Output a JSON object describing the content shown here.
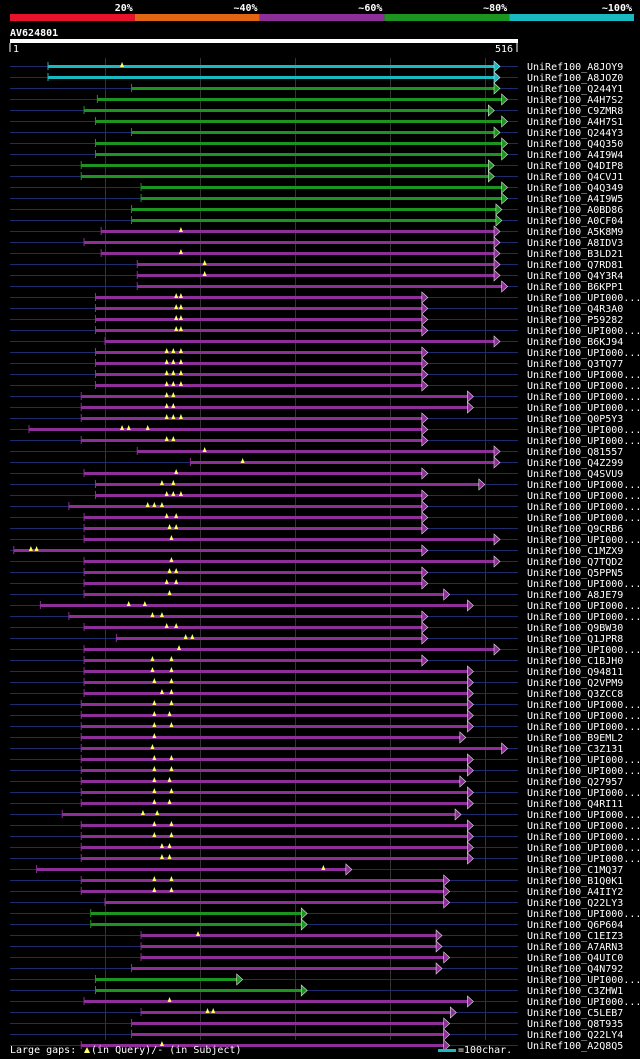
{
  "colors": {
    "band_20": "#e8132b",
    "band_40": "#e26514",
    "band_60": "#8e2e98",
    "band_80": "#1c9520",
    "band_100": "#19b9c1",
    "line_under": "#1e2c6c",
    "triangle_marker": "#ffff66"
  },
  "legend_top": [
    {
      "label": "20%",
      "color": "#e8132b"
    },
    {
      "label": "~40%",
      "color": "#e26514"
    },
    {
      "label": "~60%",
      "color": "#8e2e98"
    },
    {
      "label": "~80%",
      "color": "#1c9520"
    },
    {
      "label": "~100%",
      "color": "#19b9c1"
    }
  ],
  "query": {
    "name": "AV624801",
    "start": "1",
    "end": "516",
    "length": 516
  },
  "footer": {
    "gaps_label_pre": "Large gaps: ",
    "gaps_label_query": "(in Query)/- (in Subject)",
    "scale_label": "=100char."
  },
  "hits": [
    {
      "id": "UniRef100_A8JOY9",
      "band": 5,
      "s": 40,
      "e": 516,
      "gaps": [
        118
      ]
    },
    {
      "id": "UniRef100_A8JOZ0",
      "band": 5,
      "s": 40,
      "e": 516,
      "gaps": []
    },
    {
      "id": "UniRef100_Q244Y1",
      "band": 4,
      "s": 128,
      "e": 516,
      "gaps": []
    },
    {
      "id": "UniRef100_A4H7S2",
      "band": 4,
      "s": 92,
      "e": 524,
      "gaps": []
    },
    {
      "id": "UniRef100_C9ZMR8",
      "band": 4,
      "s": 78,
      "e": 510,
      "gaps": []
    },
    {
      "id": "UniRef100_A4H7S1",
      "band": 4,
      "s": 90,
      "e": 524,
      "gaps": []
    },
    {
      "id": "UniRef100_Q244Y3",
      "band": 4,
      "s": 128,
      "e": 516,
      "gaps": []
    },
    {
      "id": "UniRef100_Q4Q350",
      "band": 4,
      "s": 90,
      "e": 524,
      "gaps": []
    },
    {
      "id": "UniRef100_A4I9W4",
      "band": 4,
      "s": 90,
      "e": 524,
      "gaps": []
    },
    {
      "id": "UniRef100_Q4DIP8",
      "band": 4,
      "s": 75,
      "e": 510,
      "gaps": []
    },
    {
      "id": "UniRef100_Q4CVJ1",
      "band": 4,
      "s": 75,
      "e": 510,
      "gaps": []
    },
    {
      "id": "UniRef100_Q4Q349",
      "band": 4,
      "s": 138,
      "e": 524,
      "gaps": []
    },
    {
      "id": "UniRef100_A4I9W5",
      "band": 4,
      "s": 138,
      "e": 524,
      "gaps": []
    },
    {
      "id": "UniRef100_A0BD86",
      "band": 4,
      "s": 128,
      "e": 518,
      "gaps": []
    },
    {
      "id": "UniRef100_A0CF04",
      "band": 4,
      "s": 128,
      "e": 518,
      "gaps": []
    },
    {
      "id": "UniRef100_A5K8M9",
      "band": 3,
      "s": 96,
      "e": 516,
      "gaps": [
        180
      ]
    },
    {
      "id": "UniRef100_A8IDV3",
      "band": 3,
      "s": 78,
      "e": 516,
      "gaps": []
    },
    {
      "id": "UniRef100_B3LD21",
      "band": 3,
      "s": 96,
      "e": 516,
      "gaps": [
        180
      ]
    },
    {
      "id": "UniRef100_Q7RD81",
      "band": 3,
      "s": 134,
      "e": 516,
      "gaps": [
        205
      ]
    },
    {
      "id": "UniRef100_Q4Y3R4",
      "band": 3,
      "s": 134,
      "e": 516,
      "gaps": [
        205
      ]
    },
    {
      "id": "UniRef100_B6KPP1",
      "band": 3,
      "s": 134,
      "e": 524,
      "gaps": []
    },
    {
      "id": "UniRef100_UPI000...",
      "band": 3,
      "s": 90,
      "e": 440,
      "gaps": [
        175,
        180
      ]
    },
    {
      "id": "UniRef100_Q4R3A0",
      "band": 3,
      "s": 90,
      "e": 440,
      "gaps": [
        175,
        180
      ]
    },
    {
      "id": "UniRef100_P59282",
      "band": 3,
      "s": 90,
      "e": 440,
      "gaps": [
        175,
        180
      ]
    },
    {
      "id": "UniRef100_UPI000...",
      "band": 3,
      "s": 90,
      "e": 440,
      "gaps": [
        175,
        180
      ]
    },
    {
      "id": "UniRef100_B6KJ94",
      "band": 3,
      "s": 100,
      "e": 516,
      "gaps": []
    },
    {
      "id": "UniRef100_UPI000...",
      "band": 3,
      "s": 90,
      "e": 440,
      "gaps": [
        165,
        172,
        180
      ]
    },
    {
      "id": "UniRef100_Q3TQ77",
      "band": 3,
      "s": 90,
      "e": 440,
      "gaps": [
        165,
        172,
        180
      ]
    },
    {
      "id": "UniRef100_UPI000...",
      "band": 3,
      "s": 90,
      "e": 440,
      "gaps": [
        165,
        172,
        180
      ]
    },
    {
      "id": "UniRef100_UPI000...",
      "band": 3,
      "s": 90,
      "e": 440,
      "gaps": [
        165,
        172,
        180
      ]
    },
    {
      "id": "UniRef100_UPI000...",
      "band": 3,
      "s": 75,
      "e": 488,
      "gaps": [
        165,
        172
      ]
    },
    {
      "id": "UniRef100_UPI000...",
      "band": 3,
      "s": 75,
      "e": 488,
      "gaps": [
        165,
        172
      ]
    },
    {
      "id": "UniRef100_Q0P5Y3",
      "band": 3,
      "s": 75,
      "e": 440,
      "gaps": [
        165,
        172,
        180
      ]
    },
    {
      "id": "UniRef100_UPI000...",
      "band": 3,
      "s": 20,
      "e": 440,
      "gaps": [
        118,
        125,
        145
      ]
    },
    {
      "id": "UniRef100_UPI000...",
      "band": 3,
      "s": 75,
      "e": 440,
      "gaps": [
        165,
        172
      ]
    },
    {
      "id": "UniRef100_Q81557",
      "band": 3,
      "s": 134,
      "e": 516,
      "gaps": [
        205
      ]
    },
    {
      "id": "UniRef100_Q4Z299",
      "band": 3,
      "s": 190,
      "e": 516,
      "gaps": [
        245
      ]
    },
    {
      "id": "UniRef100_Q4SVU9",
      "band": 3,
      "s": 78,
      "e": 440,
      "gaps": [
        175
      ]
    },
    {
      "id": "UniRef100_UPI000...",
      "band": 3,
      "s": 90,
      "e": 500,
      "gaps": [
        160,
        172
      ]
    },
    {
      "id": "UniRef100_UPI000...",
      "band": 3,
      "s": 90,
      "e": 440,
      "gaps": [
        165,
        172,
        180
      ]
    },
    {
      "id": "UniRef100_UPI000...",
      "band": 3,
      "s": 62,
      "e": 440,
      "gaps": [
        145,
        152,
        160
      ]
    },
    {
      "id": "UniRef100_UPI000...",
      "band": 3,
      "s": 78,
      "e": 440,
      "gaps": [
        165,
        175
      ]
    },
    {
      "id": "UniRef100_Q9CRB6",
      "band": 3,
      "s": 78,
      "e": 440,
      "gaps": [
        168,
        175
      ]
    },
    {
      "id": "UniRef100_UPI000...",
      "band": 3,
      "s": 78,
      "e": 516,
      "gaps": [
        170
      ]
    },
    {
      "id": "UniRef100_C1MZX9",
      "band": 3,
      "s": 4,
      "e": 440,
      "gaps": [
        22,
        28
      ]
    },
    {
      "id": "UniRef100_Q7TQD2",
      "band": 3,
      "s": 78,
      "e": 516,
      "gaps": [
        170
      ]
    },
    {
      "id": "UniRef100_Q5PPN5",
      "band": 3,
      "s": 78,
      "e": 440,
      "gaps": [
        168,
        175
      ]
    },
    {
      "id": "UniRef100_UPI000...",
      "band": 3,
      "s": 78,
      "e": 440,
      "gaps": [
        165,
        175
      ]
    },
    {
      "id": "UniRef100_A8JE79",
      "band": 3,
      "s": 78,
      "e": 463,
      "gaps": [
        168
      ]
    },
    {
      "id": "UniRef100_UPI000...",
      "band": 3,
      "s": 32,
      "e": 488,
      "gaps": [
        125,
        142
      ]
    },
    {
      "id": "UniRef100_UPI000...",
      "band": 3,
      "s": 62,
      "e": 440,
      "gaps": [
        150,
        160
      ]
    },
    {
      "id": "UniRef100_Q9BW30",
      "band": 3,
      "s": 78,
      "e": 440,
      "gaps": [
        165,
        175
      ]
    },
    {
      "id": "UniRef100_Q1JPR8",
      "band": 3,
      "s": 112,
      "e": 440,
      "gaps": [
        185,
        192
      ]
    },
    {
      "id": "UniRef100_UPI000...",
      "band": 3,
      "s": 78,
      "e": 516,
      "gaps": [
        178
      ]
    },
    {
      "id": "UniRef100_C1BJH0",
      "band": 3,
      "s": 78,
      "e": 440,
      "gaps": [
        150,
        170
      ]
    },
    {
      "id": "UniRef100_Q94811",
      "band": 3,
      "s": 78,
      "e": 488,
      "gaps": [
        150,
        170
      ]
    },
    {
      "id": "UniRef100_Q2VPM9",
      "band": 3,
      "s": 78,
      "e": 488,
      "gaps": [
        152,
        170
      ]
    },
    {
      "id": "UniRef100_Q3ZCC8",
      "band": 3,
      "s": 78,
      "e": 488,
      "gaps": [
        160,
        170
      ]
    },
    {
      "id": "UniRef100_UPI000...",
      "band": 3,
      "s": 75,
      "e": 488,
      "gaps": [
        152,
        170
      ]
    },
    {
      "id": "UniRef100_UPI000...",
      "band": 3,
      "s": 75,
      "e": 488,
      "gaps": [
        152,
        168
      ]
    },
    {
      "id": "UniRef100_UPI000...",
      "band": 3,
      "s": 75,
      "e": 488,
      "gaps": [
        152,
        170
      ]
    },
    {
      "id": "UniRef100_B9EML2",
      "band": 3,
      "s": 75,
      "e": 480,
      "gaps": [
        152
      ]
    },
    {
      "id": "UniRef100_C3Z131",
      "band": 3,
      "s": 75,
      "e": 524,
      "gaps": [
        150
      ]
    },
    {
      "id": "UniRef100_UPI000...",
      "band": 3,
      "s": 75,
      "e": 488,
      "gaps": [
        152,
        170
      ]
    },
    {
      "id": "UniRef100_UPI000...",
      "band": 3,
      "s": 75,
      "e": 488,
      "gaps": [
        152,
        170
      ]
    },
    {
      "id": "UniRef100_Q27957",
      "band": 3,
      "s": 75,
      "e": 480,
      "gaps": [
        152,
        168
      ]
    },
    {
      "id": "UniRef100_UPI000...",
      "band": 3,
      "s": 75,
      "e": 488,
      "gaps": [
        152,
        170
      ]
    },
    {
      "id": "UniRef100_Q4RI11",
      "band": 3,
      "s": 75,
      "e": 488,
      "gaps": [
        152,
        168
      ]
    },
    {
      "id": "UniRef100_UPI000...",
      "band": 3,
      "s": 55,
      "e": 475,
      "gaps": [
        140,
        155
      ]
    },
    {
      "id": "UniRef100_UPI000...",
      "band": 3,
      "s": 75,
      "e": 488,
      "gaps": [
        152,
        170
      ]
    },
    {
      "id": "UniRef100_UPI000...",
      "band": 3,
      "s": 75,
      "e": 488,
      "gaps": [
        152,
        170
      ]
    },
    {
      "id": "UniRef100_UPI000...",
      "band": 3,
      "s": 75,
      "e": 488,
      "gaps": [
        160,
        168
      ]
    },
    {
      "id": "UniRef100_UPI000...",
      "band": 3,
      "s": 75,
      "e": 488,
      "gaps": [
        160,
        168
      ]
    },
    {
      "id": "UniRef100_C1MQ37",
      "band": 3,
      "s": 28,
      "e": 360,
      "gaps": [
        330
      ]
    },
    {
      "id": "UniRef100_B1Q0K1",
      "band": 3,
      "s": 75,
      "e": 463,
      "gaps": [
        152,
        170
      ]
    },
    {
      "id": "UniRef100_A4IIY2",
      "band": 3,
      "s": 75,
      "e": 463,
      "gaps": [
        152,
        170
      ]
    },
    {
      "id": "UniRef100_Q22LY3",
      "band": 3,
      "s": 100,
      "e": 463,
      "gaps": []
    },
    {
      "id": "UniRef100_UPI000...",
      "band": 4,
      "s": 85,
      "e": 313,
      "gaps": []
    },
    {
      "id": "UniRef100_Q6P604",
      "band": 4,
      "s": 85,
      "e": 313,
      "gaps": []
    },
    {
      "id": "UniRef100_C1EIZ3",
      "band": 3,
      "s": 138,
      "e": 455,
      "gaps": [
        198
      ]
    },
    {
      "id": "UniRef100_A7ARN3",
      "band": 3,
      "s": 138,
      "e": 455,
      "gaps": []
    },
    {
      "id": "UniRef100_Q4UIC0",
      "band": 3,
      "s": 138,
      "e": 463,
      "gaps": []
    },
    {
      "id": "UniRef100_Q4N792",
      "band": 3,
      "s": 128,
      "e": 455,
      "gaps": []
    },
    {
      "id": "UniRef100_UPI000...",
      "band": 4,
      "s": 90,
      "e": 245,
      "gaps": []
    },
    {
      "id": "UniRef100_C3ZHW1",
      "band": 4,
      "s": 90,
      "e": 313,
      "gaps": []
    },
    {
      "id": "UniRef100_UPI000...",
      "band": 3,
      "s": 78,
      "e": 488,
      "gaps": [
        168
      ]
    },
    {
      "id": "UniRef100_C5LEB7",
      "band": 3,
      "s": 138,
      "e": 470,
      "gaps": [
        208,
        214
      ]
    },
    {
      "id": "UniRef100_Q8T935",
      "band": 3,
      "s": 128,
      "e": 463,
      "gaps": []
    },
    {
      "id": "UniRef100_Q22LY4",
      "band": 3,
      "s": 128,
      "e": 463,
      "gaps": []
    },
    {
      "id": "UniRef100_A2Q8Q5",
      "band": 3,
      "s": 75,
      "e": 463,
      "gaps": [
        160
      ]
    }
  ]
}
